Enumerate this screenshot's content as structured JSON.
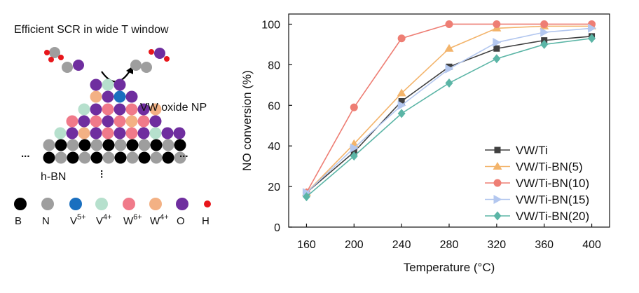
{
  "schematic": {
    "title": "Efficient SCR in wide T window",
    "np_label": "VW oxide NP",
    "support_label": "h-BN",
    "ellipsis": "...",
    "legend": [
      {
        "label": "B",
        "sup": "",
        "color": "#000000"
      },
      {
        "label": "N",
        "sup": "",
        "color": "#9e9e9e"
      },
      {
        "label": "V",
        "sup": "5+",
        "color": "#1a6fbf"
      },
      {
        "label": "V",
        "sup": "4+",
        "color": "#b6e0cd"
      },
      {
        "label": "W",
        "sup": "6+",
        "color": "#f07a8a"
      },
      {
        "label": "W",
        "sup": "4+",
        "color": "#f3b184"
      },
      {
        "label": "O",
        "sup": "",
        "color": "#6f2e9f"
      },
      {
        "label": "H",
        "sup": "",
        "color": "#e8161b"
      }
    ]
  },
  "chart_data": {
    "type": "line",
    "xlabel": "Temperature (°C)",
    "ylabel": "NO conversion (%)",
    "x": [
      160,
      200,
      240,
      280,
      320,
      360,
      400
    ],
    "xlim": [
      145,
      415
    ],
    "ylim": [
      0,
      105
    ],
    "xticks": [
      160,
      200,
      240,
      280,
      320,
      360,
      400
    ],
    "yticks": [
      0,
      20,
      40,
      60,
      80,
      100
    ],
    "legend_position": "bottom-right",
    "grid": false,
    "series": [
      {
        "name": "VW/Ti",
        "marker": "square",
        "color": "#404040",
        "values": [
          17,
          37,
          62,
          79,
          88,
          92,
          94
        ]
      },
      {
        "name": "VW/Ti-BN(5)",
        "marker": "triangle-up",
        "color": "#f3b46b",
        "values": [
          17,
          41,
          66,
          88,
          98,
          99,
          99
        ]
      },
      {
        "name": "VW/Ti-BN(10)",
        "marker": "circle",
        "color": "#ee7e74",
        "values": [
          17,
          59,
          93,
          100,
          100,
          100,
          100
        ]
      },
      {
        "name": "VW/Ti-BN(15)",
        "marker": "triangle-right",
        "color": "#b3c7ef",
        "values": [
          17,
          39,
          60,
          78,
          91,
          96,
          98
        ]
      },
      {
        "name": "VW/Ti-BN(20)",
        "marker": "diamond",
        "color": "#5bb5a6",
        "values": [
          15,
          35,
          56,
          71,
          83,
          90,
          93
        ]
      }
    ]
  }
}
